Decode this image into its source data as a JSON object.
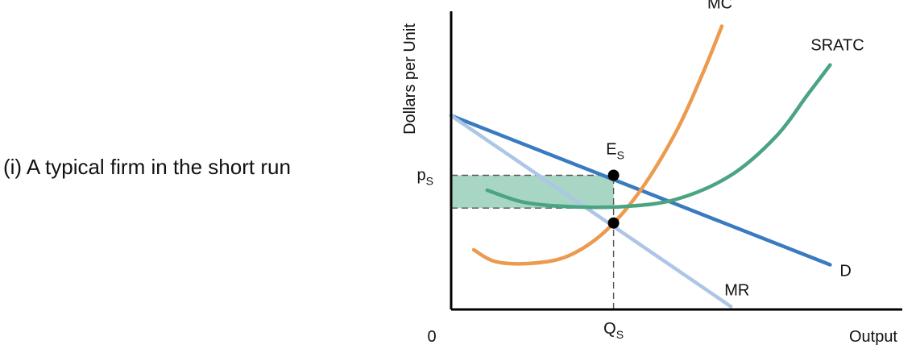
{
  "caption": "(i) A typical firm in the short run",
  "chart_data": {
    "type": "line",
    "title": "",
    "xlabel": "Output",
    "ylabel": "Dollars per Unit",
    "origin_label": "0",
    "xlim": [
      0,
      10
    ],
    "ylim": [
      0,
      10
    ],
    "grid": false,
    "legend": "none",
    "series": [
      {
        "name": "D",
        "color": "#3a7abf",
        "points": [
          [
            0,
            6.5
          ],
          [
            8.4,
            1.5
          ]
        ]
      },
      {
        "name": "MR",
        "color": "#adc6e6",
        "points": [
          [
            0,
            6.5
          ],
          [
            6.2,
            0.1
          ]
        ]
      },
      {
        "name": "MC",
        "color": "#ec9a4e",
        "points": [
          [
            0.5,
            2.0
          ],
          [
            1.0,
            1.6
          ],
          [
            1.8,
            1.55
          ],
          [
            2.6,
            1.8
          ],
          [
            3.4,
            2.6
          ],
          [
            4.2,
            4.0
          ],
          [
            5.0,
            6.0
          ],
          [
            5.6,
            8.0
          ],
          [
            6.0,
            9.5
          ]
        ]
      },
      {
        "name": "SRATC",
        "color": "#4aa482",
        "points": [
          [
            0.8,
            4.0
          ],
          [
            1.6,
            3.6
          ],
          [
            2.6,
            3.45
          ],
          [
            3.8,
            3.45
          ],
          [
            5.0,
            3.7
          ],
          [
            6.2,
            4.5
          ],
          [
            7.2,
            5.8
          ],
          [
            7.9,
            7.2
          ],
          [
            8.4,
            8.2
          ]
        ]
      }
    ],
    "profit_rectangle": {
      "x": [
        0,
        3.6
      ],
      "y": [
        3.4,
        4.5
      ],
      "color": "#a8d6c4"
    },
    "reference_lines": [
      {
        "from": [
          0,
          4.5
        ],
        "to": [
          3.6,
          4.5
        ]
      },
      {
        "from": [
          0,
          3.4
        ],
        "to": [
          3.6,
          3.4
        ]
      },
      {
        "from": [
          3.6,
          0
        ],
        "to": [
          3.6,
          4.5
        ]
      }
    ],
    "points": [
      {
        "label": "E_S",
        "base": "E",
        "sub": "S",
        "x": 3.6,
        "y": 4.5
      },
      {
        "label": "",
        "x": 3.6,
        "y": 2.9
      }
    ],
    "x_ticks": [
      {
        "value": 3.6,
        "label": "Q_S",
        "base": "Q",
        "sub": "S"
      }
    ],
    "y_ticks": [
      {
        "value": 4.5,
        "label": "p_S",
        "base": "p",
        "sub": "S"
      }
    ]
  }
}
